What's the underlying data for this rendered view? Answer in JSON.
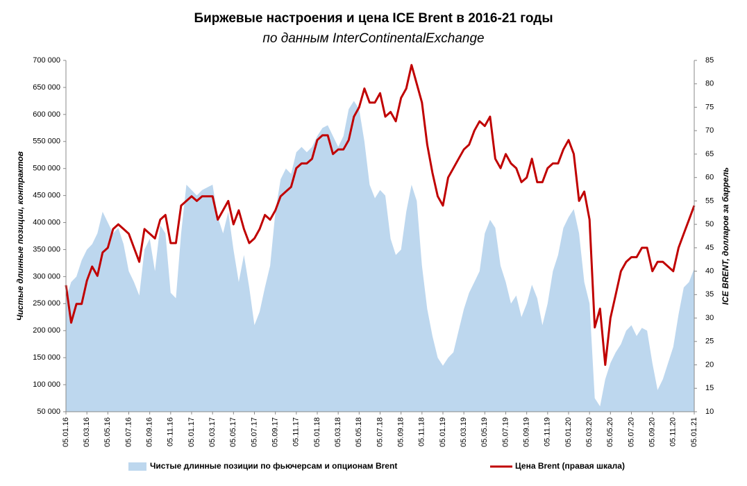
{
  "chart_data": {
    "type": "area-line",
    "title": "Биржевые настроения и цена ICE Brent в 2016-21 годы",
    "subtitle": "по данным InterContinentalExchange",
    "y_label": "Чистые длинные позиции, контрактов",
    "y2_label": "ICE BRENT, долларов за баррель",
    "categories": [
      "05.01.16",
      null,
      null,
      null,
      "05.03.16",
      null,
      null,
      null,
      "05.05.16",
      null,
      null,
      null,
      "05.07.16",
      null,
      null,
      null,
      "05.09.16",
      null,
      null,
      null,
      "05.11.16",
      null,
      null,
      null,
      "05.01.17",
      null,
      null,
      null,
      "05.03.17",
      null,
      null,
      null,
      "05.05.17",
      null,
      null,
      null,
      "05.07.17",
      null,
      null,
      null,
      "05.09.17",
      null,
      null,
      null,
      "05.11.17",
      null,
      null,
      null,
      "05.01.18",
      null,
      null,
      null,
      "05.03.18",
      null,
      null,
      null,
      "05.05.18",
      null,
      null,
      null,
      "05.07.18",
      null,
      null,
      null,
      "05.09.18",
      null,
      null,
      null,
      "05.11.18",
      null,
      null,
      null,
      "05.01.19",
      null,
      null,
      null,
      "05.03.19",
      null,
      null,
      null,
      "05.05.19",
      null,
      null,
      null,
      "05.07.19",
      null,
      null,
      null,
      "05.09.19",
      null,
      null,
      null,
      "05.11.19",
      null,
      null,
      null,
      "05.01.20",
      null,
      null,
      null,
      "05.03.20",
      null,
      null,
      null,
      "05.05.20",
      null,
      null,
      null,
      "05.07.20",
      null,
      null,
      null,
      "05.09.20",
      null,
      null,
      null,
      "05.11.20",
      null,
      null,
      null,
      "05.01.21"
    ],
    "series": [
      {
        "name": "Чистые длинные позиции по фьючерсам и опционам Brent",
        "color": "#bdd7ee",
        "axis": "y",
        "values": [
          260000,
          290000,
          300000,
          330000,
          350000,
          360000,
          380000,
          420000,
          400000,
          380000,
          390000,
          360000,
          310000,
          290000,
          265000,
          350000,
          370000,
          310000,
          395000,
          380000,
          270000,
          260000,
          380000,
          470000,
          460000,
          450000,
          460000,
          465000,
          470000,
          410000,
          380000,
          420000,
          350000,
          290000,
          340000,
          280000,
          210000,
          235000,
          280000,
          320000,
          420000,
          480000,
          500000,
          490000,
          530000,
          540000,
          530000,
          540000,
          560000,
          575000,
          580000,
          560000,
          540000,
          560000,
          610000,
          625000,
          610000,
          550000,
          470000,
          445000,
          460000,
          450000,
          370000,
          340000,
          350000,
          420000,
          470000,
          440000,
          320000,
          240000,
          190000,
          150000,
          135000,
          150000,
          160000,
          200000,
          240000,
          270000,
          290000,
          310000,
          380000,
          405000,
          390000,
          320000,
          290000,
          250000,
          265000,
          225000,
          250000,
          285000,
          260000,
          210000,
          250000,
          310000,
          340000,
          390000,
          410000,
          425000,
          380000,
          290000,
          250000,
          75000,
          60000,
          110000,
          140000,
          160000,
          175000,
          200000,
          210000,
          190000,
          205000,
          200000,
          140000,
          90000,
          110000,
          140000,
          170000,
          230000,
          280000,
          290000,
          315000
        ]
      },
      {
        "name": "Цена Brent (правая шкала)",
        "color": "#c00000",
        "axis": "y2",
        "values": [
          37,
          29,
          33,
          33,
          38,
          41,
          39,
          44,
          45,
          49,
          50,
          49,
          48,
          45,
          42,
          49,
          48,
          47,
          51,
          52,
          46,
          46,
          54,
          55,
          56,
          55,
          56,
          56,
          56,
          51,
          53,
          55,
          50,
          53,
          49,
          46,
          47,
          49,
          52,
          51,
          53,
          56,
          57,
          58,
          62,
          63,
          63,
          64,
          68,
          69,
          69,
          65,
          66,
          66,
          68,
          73,
          75,
          79,
          76,
          76,
          78,
          73,
          74,
          72,
          77,
          79,
          84,
          80,
          76,
          67,
          61,
          56,
          54,
          60,
          62,
          64,
          66,
          67,
          70,
          72,
          71,
          73,
          64,
          62,
          65,
          63,
          62,
          59,
          60,
          64,
          59,
          59,
          62,
          63,
          63,
          66,
          68,
          65,
          55,
          57,
          51,
          28,
          32,
          20,
          30,
          35,
          40,
          42,
          43,
          43,
          45,
          45,
          40,
          42,
          42,
          41,
          40,
          45,
          48,
          51,
          54
        ]
      }
    ],
    "ylim": [
      50000,
      700000
    ],
    "yticks": [
      {
        "value": 50000,
        "label": "50 000"
      },
      {
        "value": 100000,
        "label": "100 000"
      },
      {
        "value": 150000,
        "label": "150 000"
      },
      {
        "value": 200000,
        "label": "200 000"
      },
      {
        "value": 250000,
        "label": "250 000"
      },
      {
        "value": 300000,
        "label": "300 000"
      },
      {
        "value": 350000,
        "label": "350 000"
      },
      {
        "value": 400000,
        "label": "400 000"
      },
      {
        "value": 450000,
        "label": "450 000"
      },
      {
        "value": 500000,
        "label": "500 000"
      },
      {
        "value": 550000,
        "label": "550 000"
      },
      {
        "value": 600000,
        "label": "600 000"
      },
      {
        "value": 650000,
        "label": "650 000"
      },
      {
        "value": 700000,
        "label": "700 000"
      }
    ],
    "y2lim": [
      10,
      85
    ],
    "y2ticks": [
      10,
      15,
      20,
      25,
      30,
      35,
      40,
      45,
      50,
      55,
      60,
      65,
      70,
      75,
      80,
      85
    ]
  }
}
